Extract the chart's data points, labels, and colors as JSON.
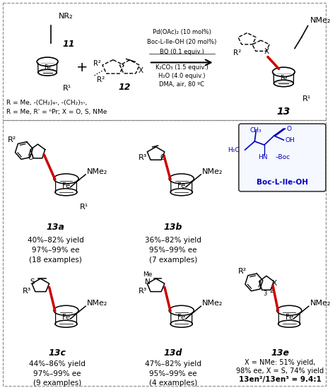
{
  "background_color": "#ffffff",
  "figsize": [
    4.74,
    5.49
  ],
  "dpi": 100,
  "reaction_conditions_above": [
    "Pd(OAc)₂ (10 mol%)",
    "Boc-L-Ile-OH (20 mol%)",
    "BQ (0.1 equiv.)"
  ],
  "reaction_conditions_below": [
    "K₂CO₃ (1.5 equiv.)",
    "H₂O (4.0 equiv.)",
    "DMA, air, 80 ºC"
  ],
  "R_line1": "R = Me, -(CH₂)₄-, -(CH₂)₅-,",
  "R_line2": "R = Me, R' = ⁿPr; X = O, S, NMe",
  "products": [
    {
      "label": "13a",
      "yield": "40%–82% yield",
      "ee": "97%–99% ee",
      "examples": "(18 examples)"
    },
    {
      "label": "13b",
      "yield": "36%–82% yield",
      "ee": "95%–99% ee",
      "examples": "(7 examples)"
    },
    {
      "label": "13c",
      "yield": "44%–86% yield",
      "ee": "97%–99% ee",
      "examples": "(9 examples)"
    },
    {
      "label": "13d",
      "yield": "47%–82% yield",
      "ee": "95%–99% ee",
      "examples": "(4 examples)"
    }
  ],
  "e_line1": "X = NMe: 51% yield,",
  "e_line2": "98% ee, X = S, 74% yield",
  "e_line3": "13en²/13en³ = 9.4:1",
  "text_color": "#000000",
  "blue_color": "#0000bb",
  "red_color": "#cc0000"
}
